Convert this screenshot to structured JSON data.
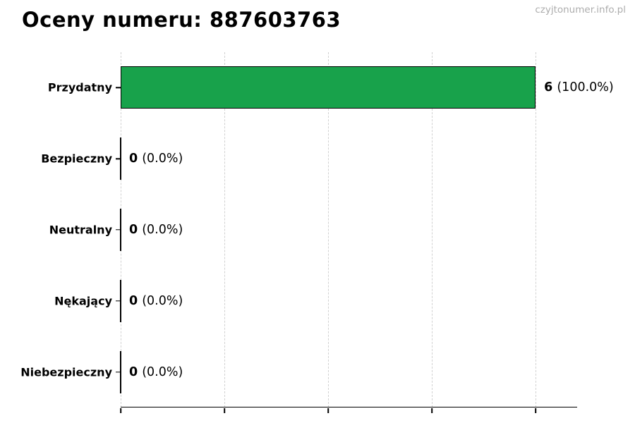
{
  "page": {
    "watermark": "czyjtonumer.info.pl"
  },
  "chart_data": {
    "type": "bar",
    "orientation": "horizontal",
    "title": "Oceny numeru: 887603763",
    "categories": [
      "Przydatny",
      "Bezpieczny",
      "Neutralny",
      "Nękający",
      "Niebezpieczny"
    ],
    "values": [
      6,
      0,
      0,
      0,
      0
    ],
    "value_labels": [
      {
        "count": "6",
        "pct": "(100.0%)"
      },
      {
        "count": "0",
        "pct": "(0.0%)"
      },
      {
        "count": "0",
        "pct": "(0.0%)"
      },
      {
        "count": "0",
        "pct": "(0.0%)"
      },
      {
        "count": "0",
        "pct": "(0.0%)"
      }
    ],
    "xlim": [
      0,
      6.6
    ],
    "xticks": [
      0,
      1.5,
      3,
      4.5,
      6
    ],
    "xtick_labels_visible": false,
    "grid": "dashed-vertical",
    "legend": "none",
    "xlabel": "",
    "ylabel": "",
    "bar_color": "#18a24b",
    "bar_edge_color": "#000000",
    "grid_color": "#d1d1d1",
    "axis_color": "#000000",
    "watermark_color": "#adadad"
  }
}
